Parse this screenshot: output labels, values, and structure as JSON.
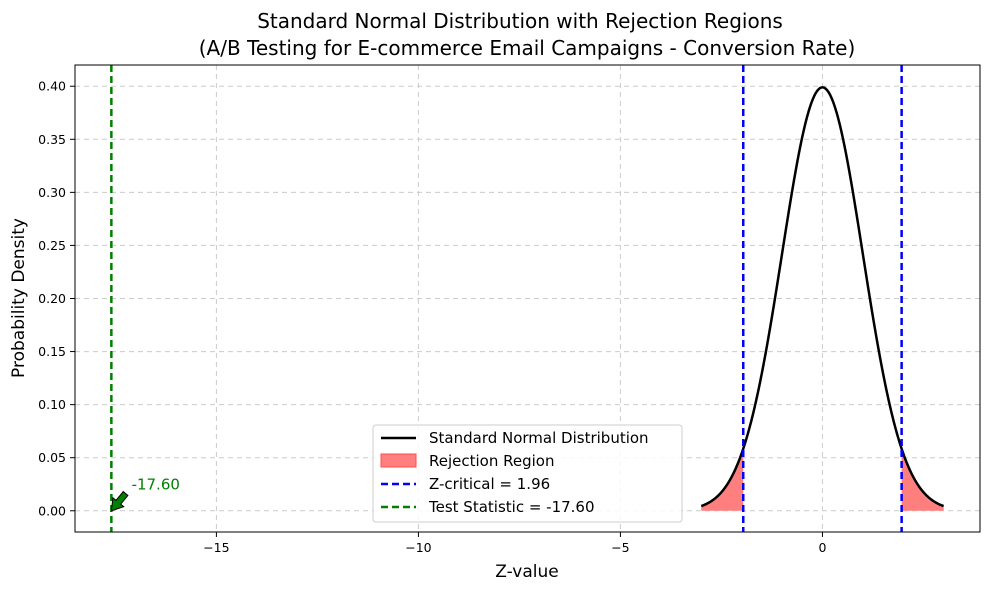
{
  "chart_data": {
    "type": "line",
    "title": [
      "Standard Normal Distribution with Rejection Regions",
      "(A/B Testing for E-commerce Email Campaigns - Conversion Rate)"
    ],
    "xlabel": "Z-value",
    "ylabel": "Probability Density",
    "xlim": [
      -18.5,
      3.9
    ],
    "ylim": [
      -0.02,
      0.42
    ],
    "xticks": [
      -15,
      -10,
      -5,
      0
    ],
    "xtick_labels": [
      "−15",
      "−10",
      "−5",
      "0"
    ],
    "yticks": [
      0.0,
      0.05,
      0.1,
      0.15,
      0.2,
      0.25,
      0.3,
      0.35,
      0.4
    ],
    "ytick_labels": [
      "0.00",
      "0.05",
      "0.10",
      "0.15",
      "0.20",
      "0.25",
      "0.30",
      "0.35",
      "0.40"
    ],
    "grid": true,
    "curve": {
      "name": "Standard Normal Distribution",
      "x_range": [
        -3,
        3
      ],
      "mean": 0,
      "sd": 1,
      "color": "#000000"
    },
    "rejection_region": {
      "name": "Rejection Region",
      "ranges": [
        [
          -3,
          -1.96
        ],
        [
          1.96,
          3
        ]
      ],
      "color": "#ff7f7f"
    },
    "z_critical": {
      "name": "Z-critical = 1.96",
      "value": 1.96,
      "color": "#0000ff"
    },
    "test_statistic": {
      "name": "Test Statistic = -17.60",
      "value": -17.6,
      "color": "#008000"
    },
    "annotation": {
      "text": "-17.60",
      "target": [
        -17.6,
        0.0
      ],
      "text_at": [
        -17.1,
        0.02
      ],
      "color": "#008000"
    },
    "legend_position": "lower-center"
  }
}
